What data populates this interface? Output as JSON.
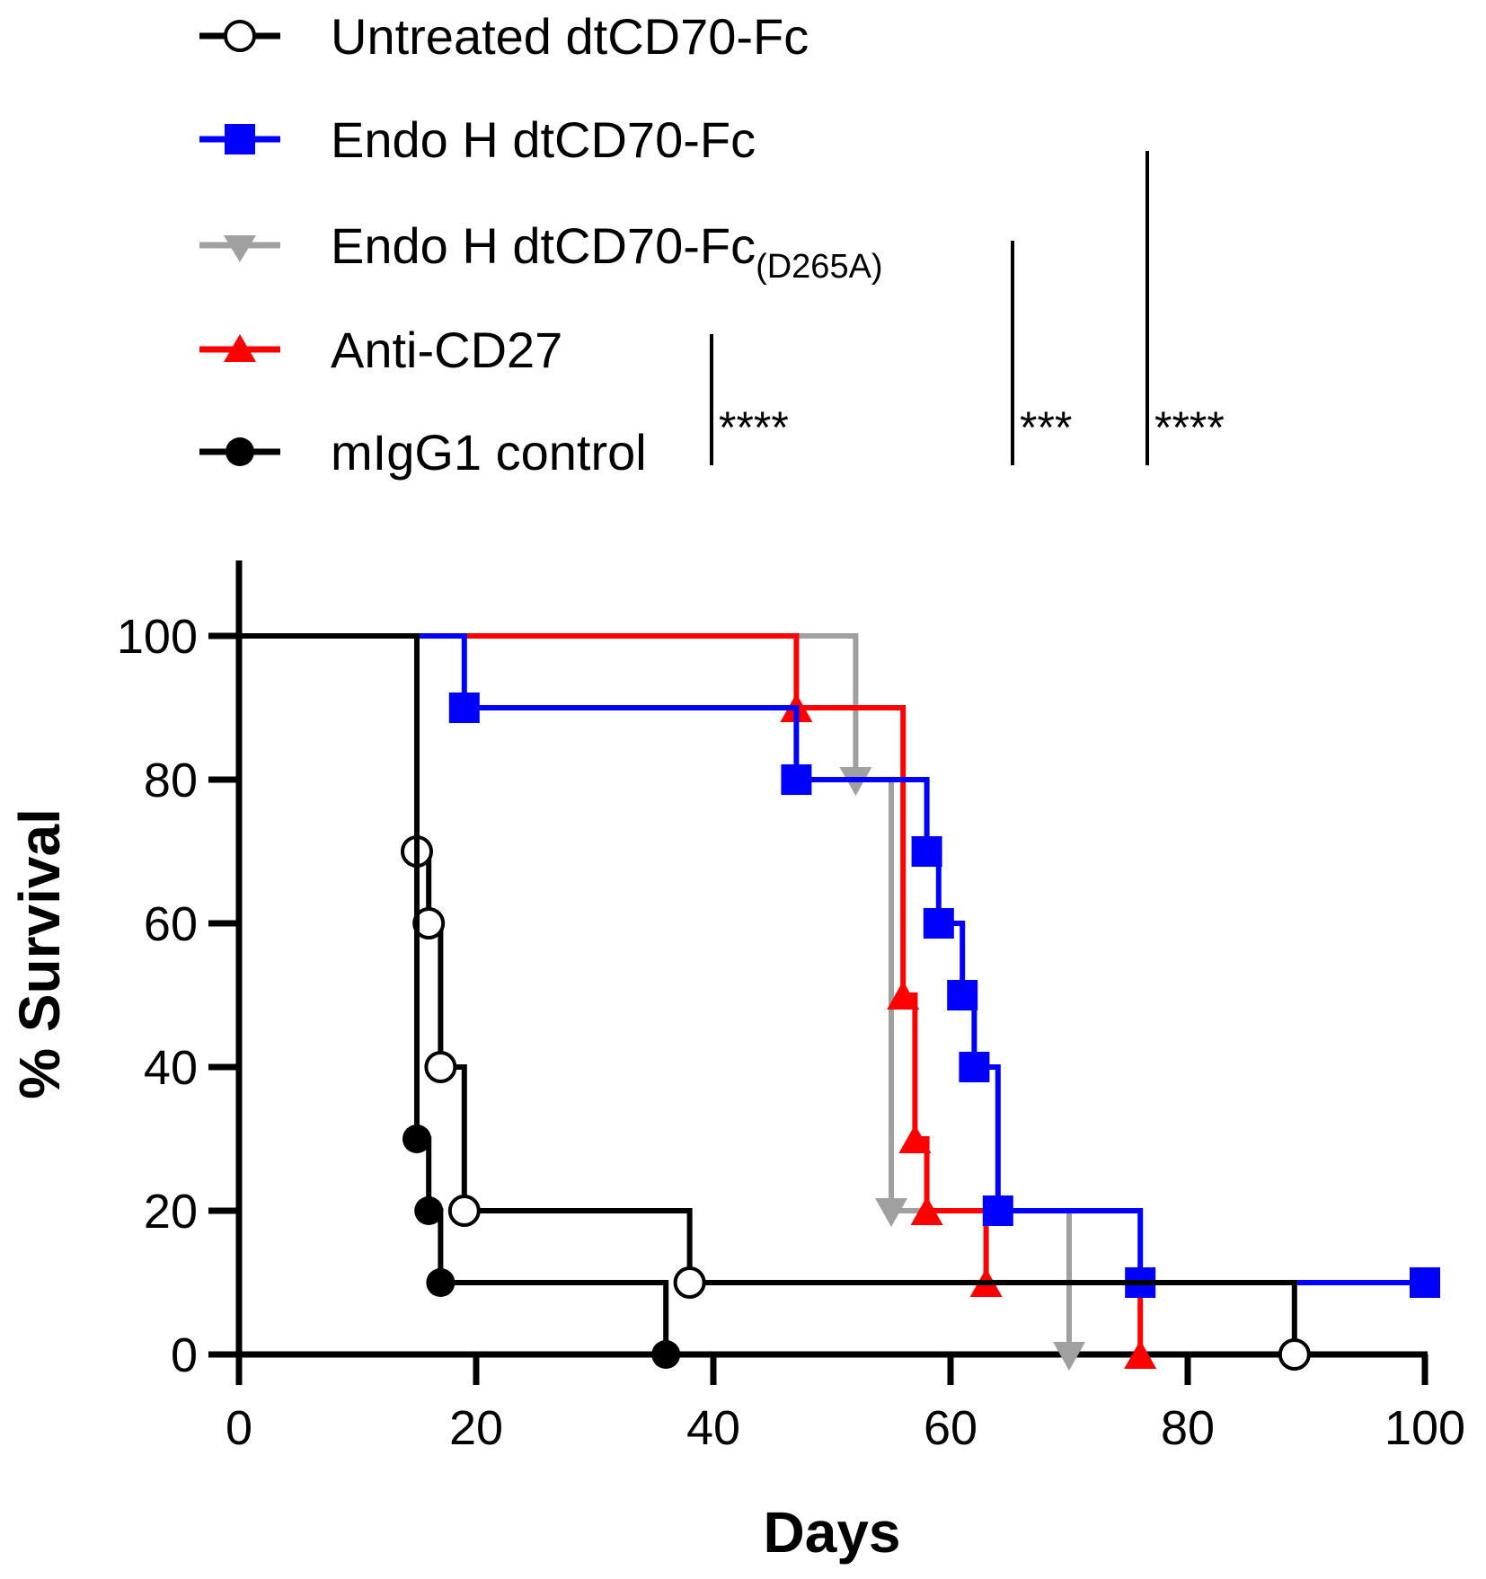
{
  "chart_data": {
    "type": "line",
    "subtype": "kaplan-meier",
    "xlabel": "Days",
    "ylabel": "% Survival",
    "xlim": [
      0,
      100
    ],
    "ylim": [
      0,
      100
    ],
    "xticks": [
      "0",
      "20",
      "40",
      "60",
      "80",
      "100"
    ],
    "yticks": [
      "0",
      "20",
      "40",
      "60",
      "80",
      "100"
    ],
    "grid": false,
    "legend_position": "top",
    "series": [
      {
        "name": "Untreated dtCD70-Fc",
        "color": "#000000",
        "marker": "circle-open",
        "steps": [
          [
            0,
            100
          ],
          [
            15,
            70
          ],
          [
            16,
            60
          ],
          [
            17,
            40
          ],
          [
            19,
            20
          ],
          [
            38,
            10
          ],
          [
            89,
            0
          ]
        ]
      },
      {
        "name": "Endo H dtCD70-Fc",
        "color": "#0000ff",
        "marker": "square",
        "steps": [
          [
            0,
            100
          ],
          [
            19,
            90
          ],
          [
            47,
            80
          ],
          [
            58,
            70
          ],
          [
            59,
            60
          ],
          [
            61,
            50
          ],
          [
            62,
            40
          ],
          [
            64,
            20
          ],
          [
            76,
            10
          ],
          [
            100,
            10
          ]
        ]
      },
      {
        "name": "Endo H dtCD70-Fc",
        "name_subscript": "(D265A)",
        "color": "#a0a0a0",
        "marker": "triangle-down",
        "steps": [
          [
            0,
            100
          ],
          [
            52,
            80
          ],
          [
            55,
            20
          ],
          [
            70,
            0
          ]
        ]
      },
      {
        "name": "Anti-CD27",
        "color": "#ff0000",
        "marker": "triangle-up",
        "steps": [
          [
            0,
            100
          ],
          [
            47,
            90
          ],
          [
            56,
            50
          ],
          [
            57,
            30
          ],
          [
            58,
            20
          ],
          [
            63,
            10
          ],
          [
            76,
            0
          ]
        ]
      },
      {
        "name": "mIgG1 control",
        "color": "#000000",
        "marker": "circle-filled",
        "steps": [
          [
            0,
            100
          ],
          [
            15,
            30
          ],
          [
            16,
            20
          ],
          [
            17,
            10
          ],
          [
            36,
            0
          ]
        ]
      }
    ],
    "significance": [
      {
        "label": "****",
        "from_series": 3,
        "to_series": 4
      },
      {
        "label": "***",
        "from_series": 2,
        "to_series": 4
      },
      {
        "label": "****",
        "from_series": 1,
        "to_series": 4
      }
    ]
  }
}
